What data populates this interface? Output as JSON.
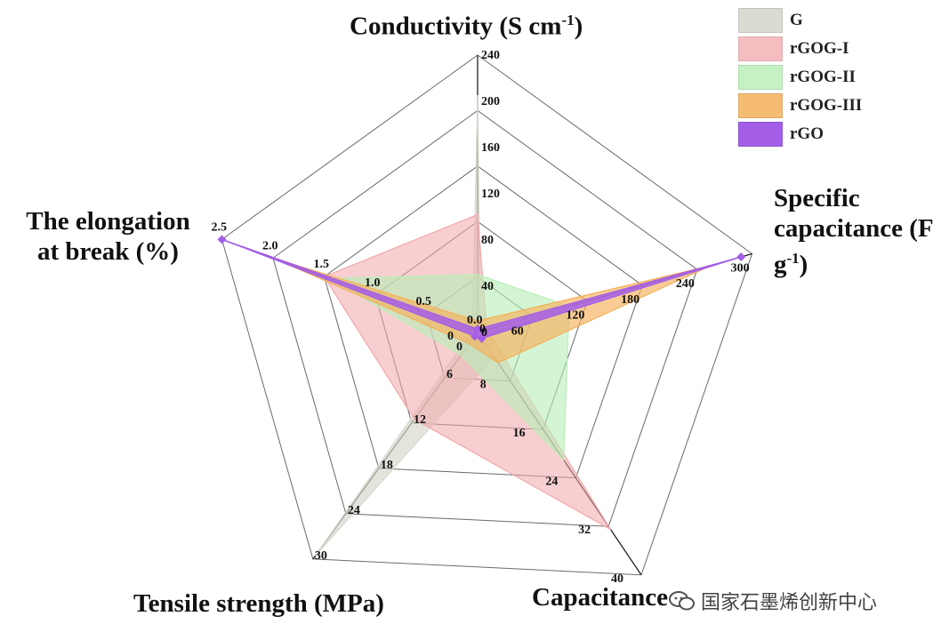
{
  "chart_data": {
    "type": "radar",
    "axes": [
      {
        "label": "Conductivity (S cm",
        "sup": "-1",
        "suffix": ")",
        "max": 240,
        "ticks": [
          "0",
          "40",
          "80",
          "120",
          "160",
          "200",
          "240"
        ],
        "tick_values": [
          0,
          40,
          80,
          120,
          160,
          200,
          240
        ]
      },
      {
        "label": "Specific capacitance (F g",
        "sup": "-1",
        "suffix": ")",
        "max": 300,
        "ticks": [
          "0",
          "60",
          "120",
          "180",
          "240",
          "300"
        ],
        "tick_values": [
          0,
          60,
          120,
          180,
          240,
          300
        ]
      },
      {
        "label": "Capacitance ",
        "sup": "",
        "suffix": "",
        "max": 40,
        "ticks": [
          "0",
          "8",
          "16",
          "24",
          "32",
          "40"
        ],
        "tick_values": [
          0,
          8,
          16,
          24,
          32,
          40
        ]
      },
      {
        "label": "Tensile strength (MPa)",
        "sup": "",
        "suffix": "",
        "max": 30,
        "ticks": [
          "0",
          "6",
          "12",
          "18",
          "24",
          "30"
        ],
        "tick_values": [
          0,
          6,
          12,
          18,
          24,
          30
        ]
      },
      {
        "label": "The elongation at break (%)",
        "sup": "",
        "suffix": "",
        "max": 2.5,
        "ticks": [
          "0.0",
          "0.5",
          "1.0",
          "1.5",
          "2.0",
          "2.5"
        ],
        "tick_values": [
          0,
          0.5,
          1.0,
          1.5,
          2.0,
          2.5
        ]
      }
    ],
    "series": [
      {
        "name": "G",
        "color": "#d9d8cf",
        "opacity": 0.7,
        "values": [
          205,
          3,
          4,
          29.5,
          0.05
        ]
      },
      {
        "name": "rGOG-I",
        "color": "#f2a7aa",
        "opacity": 0.55,
        "values": [
          102,
          10,
          32.5,
          11.5,
          1.5
        ]
      },
      {
        "name": "rGOG-II",
        "color": "#b7efb7",
        "opacity": 0.6,
        "values": [
          50,
          100,
          21,
          3,
          1.45
        ]
      },
      {
        "name": "rGOG-III",
        "color": "#f5b15a",
        "opacity": 0.65,
        "values": [
          10,
          255,
          5,
          1.5,
          2.0
        ]
      },
      {
        "name": "rGO",
        "color": "#a45ee8",
        "opacity": 0.85,
        "values": [
          3,
          288,
          1,
          0.5,
          2.5
        ]
      }
    ],
    "grid": true,
    "legend": "top-right"
  },
  "watermark": "国家石墨烯创新中心"
}
